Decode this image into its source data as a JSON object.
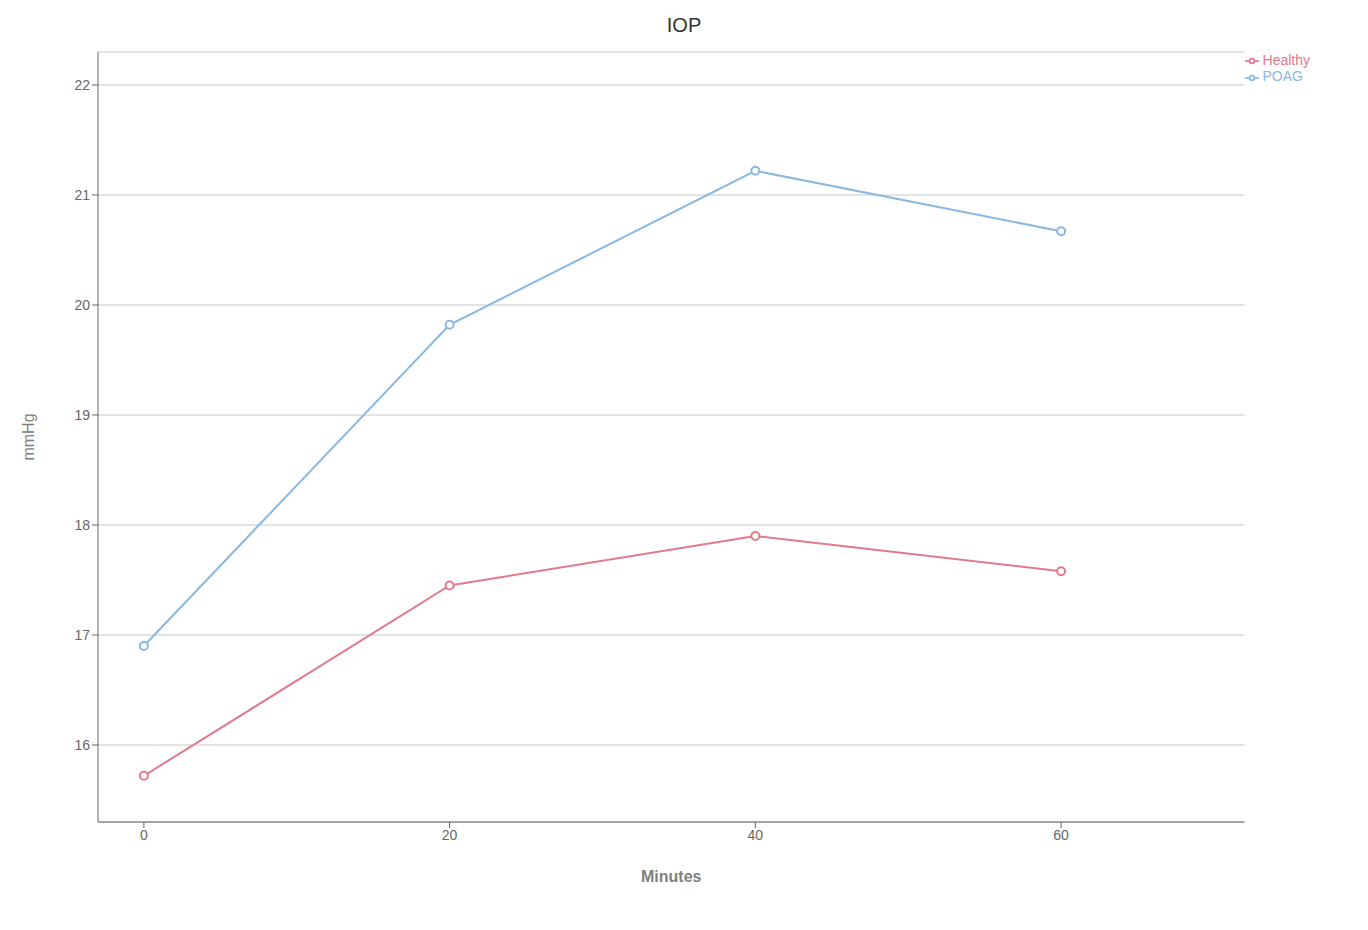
{
  "chart_data": {
    "type": "line",
    "title": "IOP",
    "xlabel": "Minutes",
    "ylabel": "mmHg",
    "x": [
      0,
      20,
      40,
      60
    ],
    "series": [
      {
        "name": "POAG",
        "color": "#89b8e0",
        "values": [
          16.9,
          19.82,
          21.22,
          20.67
        ],
        "marker": "o",
        "line_style": "solid"
      },
      {
        "name": "Healthy",
        "color": "#e07a8e",
        "values": [
          15.72,
          17.45,
          17.9,
          17.58
        ],
        "marker": "o",
        "line_style": "solid"
      }
    ],
    "xlim": [
      -3,
      72
    ],
    "xticks": [
      0,
      20,
      40,
      60
    ],
    "ylim": [
      15.3,
      22.3
    ],
    "yticks": [
      16,
      17,
      18,
      19,
      20,
      21,
      22
    ],
    "grid": true,
    "legend": "upper right"
  }
}
